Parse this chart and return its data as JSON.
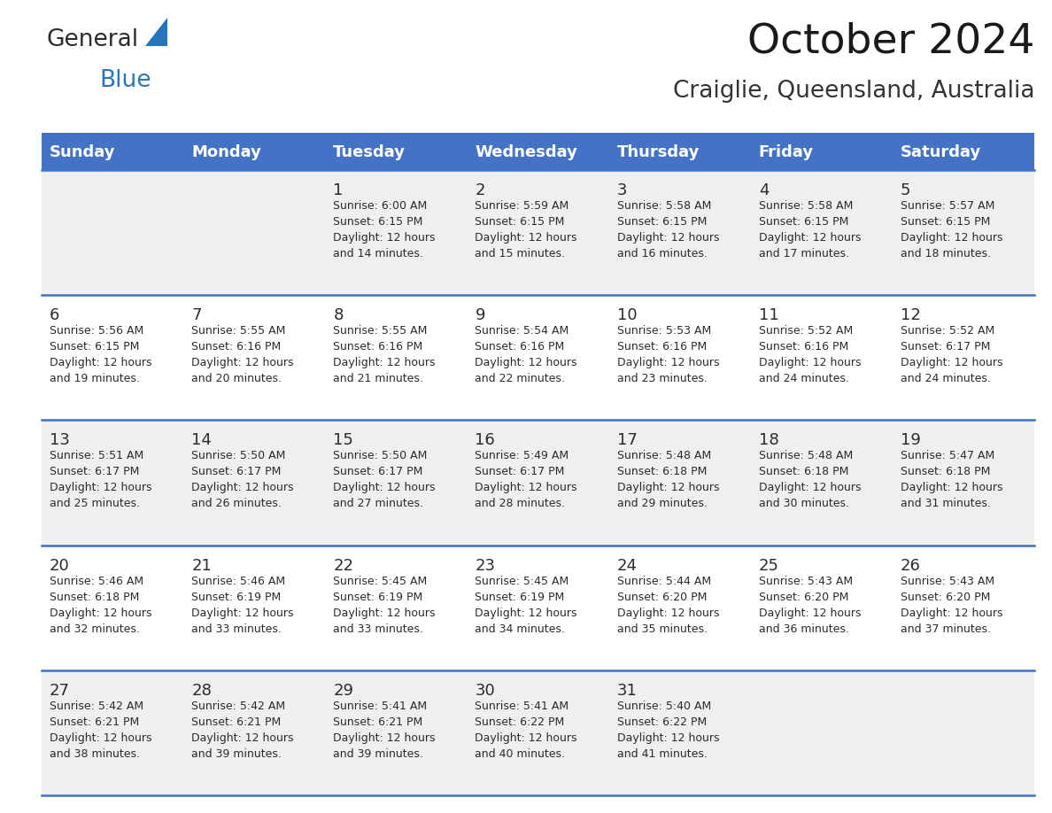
{
  "title": "October 2024",
  "subtitle": "Craiglie, Queensland, Australia",
  "header_bg": "#4472C4",
  "header_text_color": "#FFFFFF",
  "row_bg_odd": "#EFEFEF",
  "row_bg_even": "#FFFFFF",
  "grid_line_color": "#4472C4",
  "day_headers": [
    "Sunday",
    "Monday",
    "Tuesday",
    "Wednesday",
    "Thursday",
    "Friday",
    "Saturday"
  ],
  "calendar_data": [
    [
      {
        "day": "",
        "sunrise": "",
        "sunset": "",
        "daylight": ""
      },
      {
        "day": "",
        "sunrise": "",
        "sunset": "",
        "daylight": ""
      },
      {
        "day": "1",
        "sunrise": "6:00 AM",
        "sunset": "6:15 PM",
        "daylight": "12 hours and 14 minutes."
      },
      {
        "day": "2",
        "sunrise": "5:59 AM",
        "sunset": "6:15 PM",
        "daylight": "12 hours and 15 minutes."
      },
      {
        "day": "3",
        "sunrise": "5:58 AM",
        "sunset": "6:15 PM",
        "daylight": "12 hours and 16 minutes."
      },
      {
        "day": "4",
        "sunrise": "5:58 AM",
        "sunset": "6:15 PM",
        "daylight": "12 hours and 17 minutes."
      },
      {
        "day": "5",
        "sunrise": "5:57 AM",
        "sunset": "6:15 PM",
        "daylight": "12 hours and 18 minutes."
      }
    ],
    [
      {
        "day": "6",
        "sunrise": "5:56 AM",
        "sunset": "6:15 PM",
        "daylight": "12 hours and 19 minutes."
      },
      {
        "day": "7",
        "sunrise": "5:55 AM",
        "sunset": "6:16 PM",
        "daylight": "12 hours and 20 minutes."
      },
      {
        "day": "8",
        "sunrise": "5:55 AM",
        "sunset": "6:16 PM",
        "daylight": "12 hours and 21 minutes."
      },
      {
        "day": "9",
        "sunrise": "5:54 AM",
        "sunset": "6:16 PM",
        "daylight": "12 hours and 22 minutes."
      },
      {
        "day": "10",
        "sunrise": "5:53 AM",
        "sunset": "6:16 PM",
        "daylight": "12 hours and 23 minutes."
      },
      {
        "day": "11",
        "sunrise": "5:52 AM",
        "sunset": "6:16 PM",
        "daylight": "12 hours and 24 minutes."
      },
      {
        "day": "12",
        "sunrise": "5:52 AM",
        "sunset": "6:17 PM",
        "daylight": "12 hours and 24 minutes."
      }
    ],
    [
      {
        "day": "13",
        "sunrise": "5:51 AM",
        "sunset": "6:17 PM",
        "daylight": "12 hours and 25 minutes."
      },
      {
        "day": "14",
        "sunrise": "5:50 AM",
        "sunset": "6:17 PM",
        "daylight": "12 hours and 26 minutes."
      },
      {
        "day": "15",
        "sunrise": "5:50 AM",
        "sunset": "6:17 PM",
        "daylight": "12 hours and 27 minutes."
      },
      {
        "day": "16",
        "sunrise": "5:49 AM",
        "sunset": "6:17 PM",
        "daylight": "12 hours and 28 minutes."
      },
      {
        "day": "17",
        "sunrise": "5:48 AM",
        "sunset": "6:18 PM",
        "daylight": "12 hours and 29 minutes."
      },
      {
        "day": "18",
        "sunrise": "5:48 AM",
        "sunset": "6:18 PM",
        "daylight": "12 hours and 30 minutes."
      },
      {
        "day": "19",
        "sunrise": "5:47 AM",
        "sunset": "6:18 PM",
        "daylight": "12 hours and 31 minutes."
      }
    ],
    [
      {
        "day": "20",
        "sunrise": "5:46 AM",
        "sunset": "6:18 PM",
        "daylight": "12 hours and 32 minutes."
      },
      {
        "day": "21",
        "sunrise": "5:46 AM",
        "sunset": "6:19 PM",
        "daylight": "12 hours and 33 minutes."
      },
      {
        "day": "22",
        "sunrise": "5:45 AM",
        "sunset": "6:19 PM",
        "daylight": "12 hours and 33 minutes."
      },
      {
        "day": "23",
        "sunrise": "5:45 AM",
        "sunset": "6:19 PM",
        "daylight": "12 hours and 34 minutes."
      },
      {
        "day": "24",
        "sunrise": "5:44 AM",
        "sunset": "6:20 PM",
        "daylight": "12 hours and 35 minutes."
      },
      {
        "day": "25",
        "sunrise": "5:43 AM",
        "sunset": "6:20 PM",
        "daylight": "12 hours and 36 minutes."
      },
      {
        "day": "26",
        "sunrise": "5:43 AM",
        "sunset": "6:20 PM",
        "daylight": "12 hours and 37 minutes."
      }
    ],
    [
      {
        "day": "27",
        "sunrise": "5:42 AM",
        "sunset": "6:21 PM",
        "daylight": "12 hours and 38 minutes."
      },
      {
        "day": "28",
        "sunrise": "5:42 AM",
        "sunset": "6:21 PM",
        "daylight": "12 hours and 39 minutes."
      },
      {
        "day": "29",
        "sunrise": "5:41 AM",
        "sunset": "6:21 PM",
        "daylight": "12 hours and 39 minutes."
      },
      {
        "day": "30",
        "sunrise": "5:41 AM",
        "sunset": "6:22 PM",
        "daylight": "12 hours and 40 minutes."
      },
      {
        "day": "31",
        "sunrise": "5:40 AM",
        "sunset": "6:22 PM",
        "daylight": "12 hours and 41 minutes."
      },
      {
        "day": "",
        "sunrise": "",
        "sunset": "",
        "daylight": ""
      },
      {
        "day": "",
        "sunrise": "",
        "sunset": "",
        "daylight": ""
      }
    ]
  ],
  "logo_text1": "General",
  "logo_text2": "Blue",
  "logo_text1_color": "#2B2B2B",
  "logo_text2_color": "#2776BB",
  "logo_triangle_color": "#2776BB",
  "title_color": "#1A1A1A",
  "subtitle_color": "#333333",
  "cell_text_color": "#2B2B2B",
  "day_num_fontsize": 13,
  "cell_text_fontsize": 9,
  "header_fontsize": 13,
  "title_fontsize": 34,
  "subtitle_fontsize": 19,
  "logo_fontsize": 19
}
